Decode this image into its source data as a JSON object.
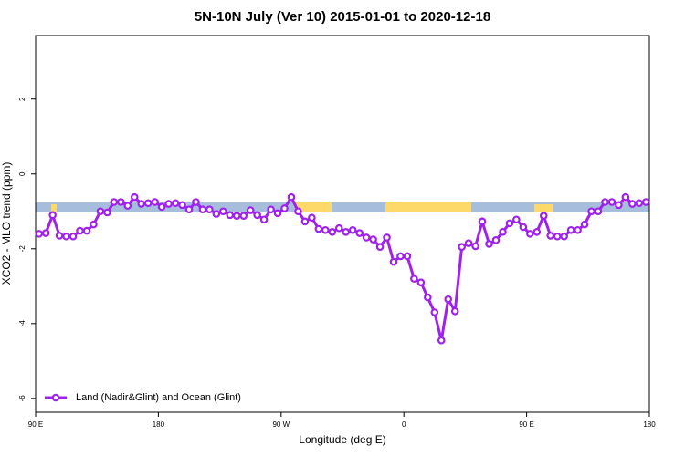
{
  "chart_data": {
    "type": "line",
    "title": "5N-10N July (Ver 10)   2015-01-01 to 2020-12-18",
    "x_label": "Longitude (deg E)",
    "y_label": "XCO2 - MLO trend (ppm)",
    "x": [
      92.5,
      97.5,
      102.5,
      107.5,
      112.5,
      117.5,
      122.5,
      127.5,
      132.5,
      137.5,
      142.5,
      147.5,
      152.5,
      157.5,
      162.5,
      167.5,
      172.5,
      177.5,
      182.5,
      187.5,
      192.5,
      197.5,
      202.5,
      207.5,
      212.5,
      217.5,
      222.5,
      227.5,
      232.5,
      237.5,
      242.5,
      247.5,
      252.5,
      257.5,
      262.5,
      267.5,
      272.5,
      277.5,
      282.5,
      287.5,
      292.5,
      297.5,
      302.5,
      307.5,
      312.5,
      317.5,
      322.5,
      327.5,
      332.5,
      337.5,
      342.5,
      347.5,
      352.5,
      357.5,
      362.5,
      367.5,
      372.5,
      377.5,
      382.5,
      387.5,
      392.5,
      397.5,
      402.5,
      407.5,
      412.5,
      417.5,
      422.5,
      427.5,
      432.5,
      437.5,
      442.5,
      447.5,
      452.5,
      457.5,
      462.5,
      467.5,
      472.5,
      477.5,
      482.5,
      487.5,
      492.5,
      497.5,
      502.5,
      507.5,
      512.5,
      517.5,
      522.5,
      527.5,
      532.5,
      537.5
    ],
    "series": [
      {
        "name": "Land (Nadir&Glint) and Ocean (Glint)",
        "color": "#a020f0",
        "values": [
          -1.6,
          -1.58,
          -1.1,
          -1.65,
          -1.67,
          -1.67,
          -1.52,
          -1.52,
          -1.35,
          -1.0,
          -1.03,
          -0.75,
          -0.75,
          -0.85,
          -0.62,
          -0.8,
          -0.78,
          -0.75,
          -0.88,
          -0.8,
          -0.78,
          -0.83,
          -0.95,
          -0.75,
          -0.95,
          -0.95,
          -1.07,
          -1.0,
          -1.1,
          -1.12,
          -1.12,
          -0.97,
          -1.1,
          -1.22,
          -0.95,
          -1.05,
          -0.92,
          -0.62,
          -1.0,
          -1.27,
          -1.17,
          -1.47,
          -1.5,
          -1.55,
          -1.45,
          -1.55,
          -1.5,
          -1.58,
          -1.7,
          -1.75,
          -1.95,
          -1.7,
          -2.35,
          -2.2,
          -2.2,
          -2.8,
          -2.9,
          -3.3,
          -3.7,
          -4.45,
          -3.35,
          -3.67,
          -1.95,
          -1.85,
          -1.93,
          -1.27,
          -1.87,
          -1.77,
          -1.55,
          -1.32,
          -1.22,
          -1.42,
          -1.6,
          -1.55,
          -1.12,
          -1.65,
          -1.67,
          -1.67,
          -1.5,
          -1.5,
          -1.35,
          -1.0,
          -1.0,
          -0.75,
          -0.75,
          -0.83,
          -0.62,
          -0.8,
          -0.78,
          -0.75
        ]
      }
    ],
    "xlim": [
      90,
      540
    ],
    "xticks": [
      {
        "value": 90,
        "label": "90 E"
      },
      180,
      {
        "value": 270,
        "label": "90 W"
      },
      {
        "value": 360,
        "label": "0"
      },
      {
        "value": 450,
        "label": "90 E"
      },
      {
        "value": 540,
        "label": "180"
      }
    ],
    "ylim": [
      -6.37,
      3.7
    ],
    "yticks": [
      -6,
      -4,
      -2,
      0,
      2
    ],
    "legend": "bottom-left"
  }
}
